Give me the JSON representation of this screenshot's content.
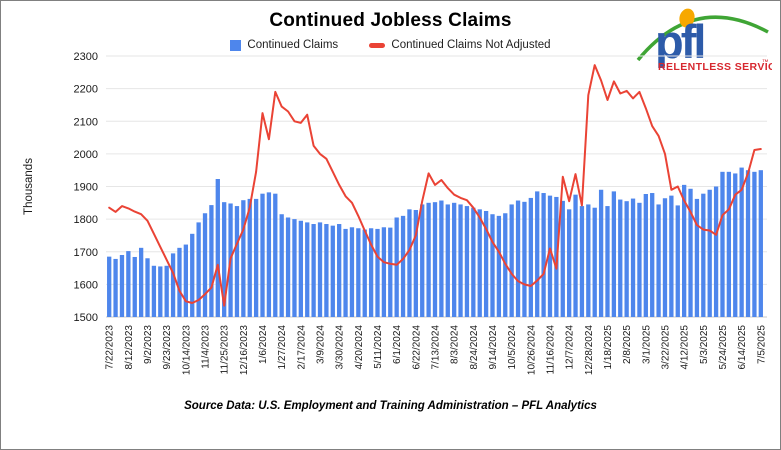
{
  "header": {
    "title": "Continued Jobless Claims",
    "legend": [
      "Continued Claims",
      "Continued Claims Not Adjusted"
    ]
  },
  "logo": {
    "wordmark": "pfl",
    "tagline": "RELENTLESS SERVICE",
    "tm": "™",
    "colors": {
      "wordmark": "#2d5ba9",
      "tagline": "#d7282f",
      "dot": "#f7a800",
      "arc": "#3fa535"
    }
  },
  "footer": {
    "source": "Source Data: U.S. Employment and Training Administration – PFL Analytics"
  },
  "chart_data": {
    "type": "bar",
    "title": "Continued Jobless Claims",
    "xlabel": "",
    "ylabel": "Thousands",
    "ylim": [
      1500,
      2300
    ],
    "yticks": [
      1500,
      1600,
      1700,
      1800,
      1900,
      2000,
      2100,
      2200,
      2300
    ],
    "grid": "horizontal",
    "legend_position": "top",
    "x_label_every": 3,
    "categories": [
      "7/22/2023",
      "7/29/2023",
      "8/5/2023",
      "8/12/2023",
      "8/19/2023",
      "8/26/2023",
      "9/2/2023",
      "9/9/2023",
      "9/16/2023",
      "9/23/2023",
      "9/30/2023",
      "10/7/2023",
      "10/14/2023",
      "10/21/2023",
      "10/28/2023",
      "11/4/2023",
      "11/11/2023",
      "11/18/2023",
      "11/25/2023",
      "12/2/2023",
      "12/9/2023",
      "12/16/2023",
      "12/23/2023",
      "12/30/2023",
      "1/6/2024",
      "1/13/2024",
      "1/20/2024",
      "1/27/2024",
      "2/3/2024",
      "2/10/2024",
      "2/17/2024",
      "2/24/2024",
      "3/2/2024",
      "3/9/2024",
      "3/16/2024",
      "3/23/2024",
      "3/30/2024",
      "4/6/2024",
      "4/13/2024",
      "4/20/2024",
      "4/27/2024",
      "5/4/2024",
      "5/11/2024",
      "5/18/2024",
      "5/25/2024",
      "6/1/2024",
      "6/8/2024",
      "6/15/2024",
      "6/22/2024",
      "6/29/2024",
      "7/6/2024",
      "7/13/2024",
      "7/20/2024",
      "7/27/2024",
      "8/3/2024",
      "8/10/2024",
      "8/17/2024",
      "8/24/2024",
      "8/31/2024",
      "9/7/2024",
      "9/14/2024",
      "9/21/2024",
      "9/28/2024",
      "10/5/2024",
      "10/12/2024",
      "10/19/2024",
      "10/26/2024",
      "11/2/2024",
      "11/9/2024",
      "11/16/2024",
      "11/23/2024",
      "11/30/2024",
      "12/7/2024",
      "12/14/2024",
      "12/21/2024",
      "12/28/2024",
      "1/4/2025",
      "1/11/2025",
      "1/18/2025",
      "1/25/2025",
      "2/1/2025",
      "2/8/2025",
      "2/15/2025",
      "2/22/2025",
      "3/1/2025",
      "3/8/2025",
      "3/15/2025",
      "3/22/2025",
      "3/29/2025",
      "4/5/2025",
      "4/12/2025",
      "4/19/2025",
      "4/26/2025",
      "5/3/2025",
      "5/10/2025",
      "5/17/2025",
      "5/24/2025",
      "5/31/2025",
      "6/7/2025",
      "6/14/2025",
      "6/21/2025",
      "6/28/2025",
      "7/5/2025"
    ],
    "series": [
      {
        "name": "Continued Claims",
        "type": "bar",
        "color": "#4e86ec",
        "values": [
          1685,
          1678,
          1690,
          1702,
          1684,
          1712,
          1680,
          1657,
          1655,
          1657,
          1695,
          1712,
          1722,
          1755,
          1790,
          1818,
          1843,
          1923,
          1852,
          1848,
          1840,
          1858,
          1862,
          1862,
          1878,
          1882,
          1878,
          1815,
          1805,
          1800,
          1795,
          1790,
          1785,
          1790,
          1785,
          1780,
          1785,
          1770,
          1775,
          1772,
          1768,
          1772,
          1770,
          1775,
          1774,
          1805,
          1810,
          1830,
          1828,
          1845,
          1850,
          1852,
          1857,
          1845,
          1850,
          1845,
          1840,
          1835,
          1830,
          1825,
          1815,
          1810,
          1818,
          1845,
          1857,
          1853,
          1865,
          1885,
          1880,
          1872,
          1868,
          1856,
          1830,
          1875,
          1840,
          1845,
          1835,
          1890,
          1840,
          1885,
          1860,
          1855,
          1863,
          1850,
          1877,
          1880,
          1845,
          1864,
          1872,
          1842,
          1905,
          1893,
          1862,
          1878,
          1890,
          1900,
          1945,
          1945,
          1940,
          1958,
          1950,
          1945,
          1950
        ]
      },
      {
        "name": "Continued Claims Not Adjusted",
        "type": "line",
        "color": "#ea4335",
        "values": [
          1835,
          1822,
          1840,
          1833,
          1823,
          1815,
          1795,
          1755,
          1715,
          1675,
          1635,
          1580,
          1548,
          1543,
          1552,
          1570,
          1590,
          1660,
          1535,
          1680,
          1725,
          1768,
          1835,
          1945,
          2125,
          2045,
          2190,
          2145,
          2130,
          2100,
          2095,
          2120,
          2025,
          2000,
          1985,
          1945,
          1905,
          1870,
          1850,
          1810,
          1765,
          1722,
          1685,
          1668,
          1663,
          1660,
          1678,
          1705,
          1750,
          1855,
          1940,
          1905,
          1920,
          1895,
          1875,
          1865,
          1858,
          1835,
          1805,
          1770,
          1730,
          1700,
          1663,
          1632,
          1610,
          1600,
          1595,
          1612,
          1632,
          1710,
          1648,
          1930,
          1855,
          1938,
          1842,
          2180,
          2272,
          2225,
          2165,
          2222,
          2185,
          2193,
          2170,
          2190,
          2140,
          2085,
          2055,
          2000,
          1890,
          1900,
          1857,
          1822,
          1782,
          1768,
          1765,
          1752,
          1812,
          1830,
          1875,
          1890,
          1940,
          2012,
          2015
        ]
      }
    ]
  }
}
